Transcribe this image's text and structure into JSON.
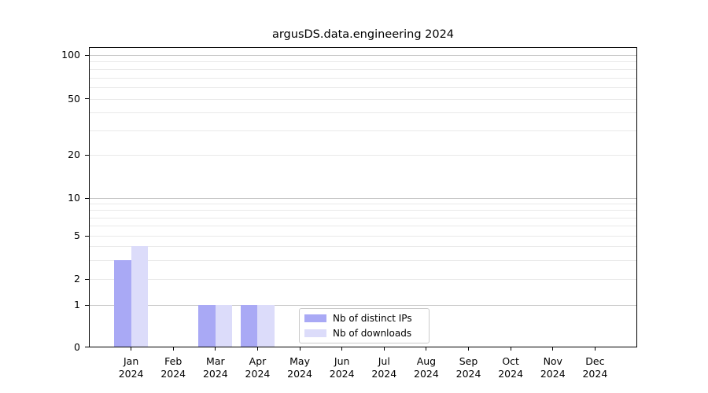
{
  "title": "argusDS.data.engineering 2024",
  "legend": {
    "items": [
      {
        "label": "Nb of distinct IPs",
        "color": "#a9a9f5"
      },
      {
        "label": "Nb of downloads",
        "color": "#dcdcfa"
      }
    ]
  },
  "chart_data": {
    "type": "bar",
    "title": "argusDS.data.engineering 2024",
    "categories": [
      "Jan 2024",
      "Feb 2024",
      "Mar 2024",
      "Apr 2024",
      "May 2024",
      "Jun 2024",
      "Jul 2024",
      "Aug 2024",
      "Sep 2024",
      "Oct 2024",
      "Nov 2024",
      "Dec 2024"
    ],
    "series": [
      {
        "name": "Nb of distinct IPs",
        "color": "#a9a9f5",
        "values": [
          3,
          0,
          1,
          1,
          0,
          0,
          0,
          0,
          0,
          0,
          0,
          0
        ]
      },
      {
        "name": "Nb of downloads",
        "color": "#dcdcfa",
        "values": [
          4,
          0,
          1,
          1,
          0,
          0,
          0,
          0,
          0,
          0,
          0,
          0
        ]
      }
    ],
    "yscale": "symlog",
    "yticks": [
      100,
      50,
      20,
      10,
      5,
      2,
      1,
      0
    ],
    "ylim": [
      0,
      133
    ],
    "xlabel": "",
    "ylabel": "",
    "grid": true,
    "legend_position": "lower center"
  },
  "colors": {
    "grid_major": "#c6c6c6",
    "grid_minor": "#e9e9e9",
    "spine": "#000000",
    "legend_border": "#cbcbcb"
  }
}
